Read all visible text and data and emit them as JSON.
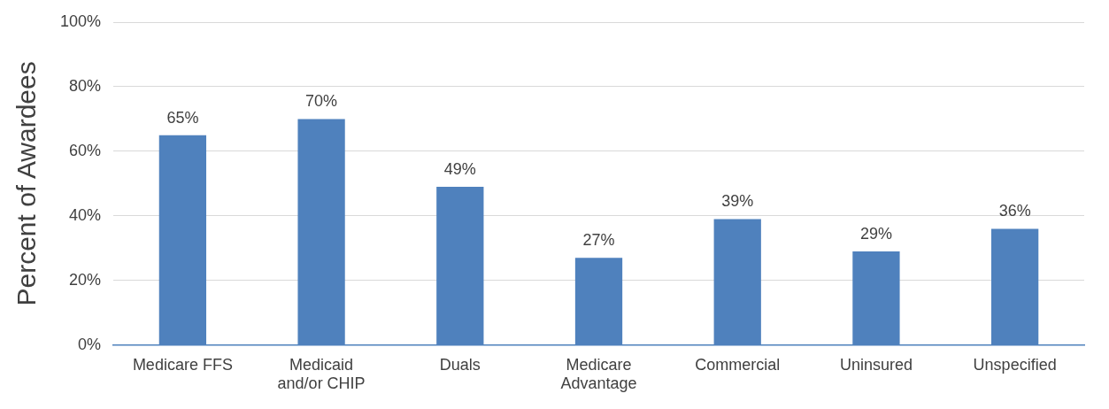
{
  "chart_data": {
    "type": "bar",
    "ylabel": "Percent of Awardees",
    "categories": [
      "Medicare FFS",
      "Medicaid and/or CHIP",
      "Duals",
      "Medicare Advantage",
      "Commercial",
      "Uninsured",
      "Unspecified"
    ],
    "values": [
      65,
      70,
      49,
      27,
      39,
      29,
      36
    ],
    "value_labels": [
      "65%",
      "70%",
      "49%",
      "27%",
      "39%",
      "29%",
      "36%"
    ],
    "color": "#4f81bd",
    "ylim": [
      0,
      100
    ],
    "yticks": [
      {
        "value": 0,
        "label": "0%"
      },
      {
        "value": 20,
        "label": "20%"
      },
      {
        "value": 40,
        "label": "40%"
      },
      {
        "value": 60,
        "label": "60%"
      },
      {
        "value": 80,
        "label": "80%"
      },
      {
        "value": 100,
        "label": "100%"
      }
    ],
    "grid": "y",
    "legend": false
  }
}
